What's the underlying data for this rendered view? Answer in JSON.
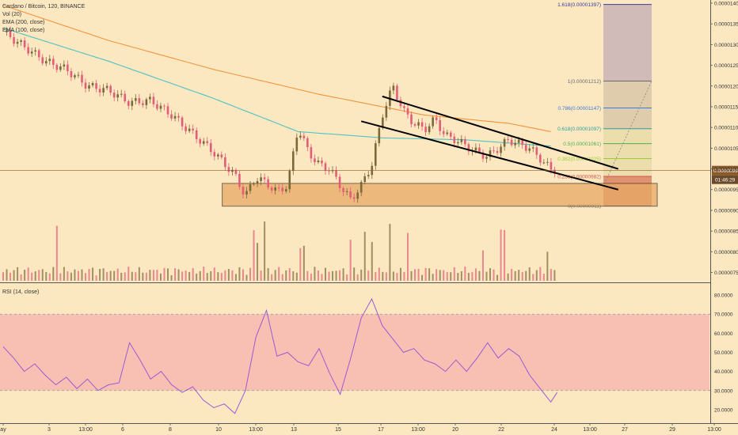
{
  "colors": {
    "background": "#fbe8c1",
    "up_candle": "#7a6a3a",
    "down_candle": "#e35d7a",
    "ema200": "#f0943c",
    "ema100": "#4ec2c6",
    "rsi_line": "#9b59d4",
    "rsi_band": "#f6b9b0",
    "support_zone": "#e7a965",
    "channel": "#000000",
    "current_price_tag": "#8b5a2b",
    "fib_top_fill": "#c9b3b6",
    "fib_mid_fill": "#d9c7a8"
  },
  "legend": {
    "title": "Cardano / Bitcoin, 120, BINANCE",
    "vol": "Vol (20)",
    "ema200": "EMA (200, close)",
    "ema100": "EMA (100, close)"
  },
  "rsi_legend": "RSI (14, close)",
  "price_tag": {
    "price": "0.00000996",
    "countdown": "01:46:29"
  },
  "fib_levels": [
    {
      "label": "1.618(0.00001397)",
      "value": 1.397e-05,
      "color": "#3a3a9c"
    },
    {
      "label": "1(0.00001212)",
      "value": 1.212e-05,
      "color": "#6b6b6b"
    },
    {
      "label": "0.786(0.00001147)",
      "value": 1.147e-05,
      "color": "#3a7bd5"
    },
    {
      "label": "0.618(0.00001097)",
      "value": 1.097e-05,
      "color": "#2aa198"
    },
    {
      "label": "0.5(0.00001061)",
      "value": 1.061e-05,
      "color": "#4caf50"
    },
    {
      "label": "0.382(0.00001025)",
      "value": 1.025e-05,
      "color": "#9acd32"
    },
    {
      "label": "0.236(0.00000982)",
      "value": 9.82e-06,
      "color": "#d9534f"
    },
    {
      "label": "0(0.00000911)",
      "value": 9.11e-06,
      "color": "#777777"
    }
  ],
  "chart_data": [
    {
      "type": "candlestick",
      "title": "Cardano / Bitcoin, 120, BINANCE",
      "ylim": [
        7.3e-06,
        1.4e-05
      ],
      "y_ticks": [
        "0.00001400",
        "0.00001350",
        "0.00001300",
        "0.00001250",
        "0.00001200",
        "0.00001150",
        "0.00001100",
        "0.00001050",
        "0.00001000",
        "0.00000950",
        "0.00000900",
        "0.00000850",
        "0.00000800",
        "0.00000750"
      ],
      "x_ticks": [
        "ay",
        "3",
        "13:00",
        "6",
        "8",
        "10",
        "13:00",
        "13",
        "15",
        "17",
        "13:00",
        "20",
        "22",
        "24",
        "13:00",
        "27",
        "29",
        "13:00"
      ],
      "ohlc_knots": [
        {
          "day": 0,
          "close": 1.33e-05
        },
        {
          "day": 1,
          "close": 1.295e-05
        },
        {
          "day": 2,
          "close": 1.26e-05
        },
        {
          "day": 3,
          "close": 1.24e-05
        },
        {
          "day": 4,
          "close": 1.2e-05
        },
        {
          "day": 5,
          "close": 1.19e-05
        },
        {
          "day": 6,
          "close": 1.16e-05
        },
        {
          "day": 7,
          "close": 1.165e-05
        },
        {
          "day": 8,
          "close": 1.13e-05
        },
        {
          "day": 9,
          "close": 1.085e-05
        },
        {
          "day": 10,
          "close": 1.04e-05
        },
        {
          "day": 11,
          "close": 9.85e-06
        },
        {
          "day": 11.5,
          "close": 9.35e-06
        },
        {
          "day": 12,
          "close": 9.8e-06
        },
        {
          "day": 12.5,
          "close": 9.65e-06
        },
        {
          "day": 13,
          "close": 9.45e-06
        },
        {
          "day": 13.5,
          "close": 9.6e-06
        },
        {
          "day": 14,
          "close": 1.1e-05
        },
        {
          "day": 14.5,
          "close": 1.04e-05
        },
        {
          "day": 15,
          "close": 1.01e-05
        },
        {
          "day": 15.5,
          "close": 1e-05
        },
        {
          "day": 16,
          "close": 9.6e-06
        },
        {
          "day": 16.5,
          "close": 9.25e-06
        },
        {
          "day": 17,
          "close": 9.6e-06
        },
        {
          "day": 17.5,
          "close": 1.01e-05
        },
        {
          "day": 18,
          "close": 1.13e-05
        },
        {
          "day": 18.5,
          "close": 1.2e-05
        },
        {
          "day": 19,
          "close": 1.14e-05
        },
        {
          "day": 19.5,
          "close": 1.11e-05
        },
        {
          "day": 20,
          "close": 1.095e-05
        },
        {
          "day": 20.5,
          "close": 1.12e-05
        },
        {
          "day": 21,
          "close": 1.08e-05
        },
        {
          "day": 21.5,
          "close": 1.07e-05
        },
        {
          "day": 22,
          "close": 1.055e-05
        },
        {
          "day": 22.5,
          "close": 1.04e-05
        },
        {
          "day": 23,
          "close": 1.03e-05
        },
        {
          "day": 23.5,
          "close": 1.05e-05
        },
        {
          "day": 24,
          "close": 1.07e-05
        },
        {
          "day": 24.5,
          "close": 1.06e-05
        },
        {
          "day": 25,
          "close": 1.05e-05
        },
        {
          "day": 25.5,
          "close": 1.025e-05
        },
        {
          "day": 26,
          "close": 9.98e-06
        }
      ],
      "ema200_knots": [
        [
          0,
          1.395e-05
        ],
        [
          5,
          1.31e-05
        ],
        [
          10,
          1.24e-05
        ],
        [
          15,
          1.18e-05
        ],
        [
          20,
          1.13e-05
        ],
        [
          24,
          1.11e-05
        ],
        [
          26,
          1.09e-05
        ]
      ],
      "ema100_knots": [
        [
          0,
          1.34e-05
        ],
        [
          5,
          1.26e-05
        ],
        [
          10,
          1.17e-05
        ],
        [
          14,
          1.09e-05
        ],
        [
          18,
          1.075e-05
        ],
        [
          22,
          1.07e-05
        ],
        [
          26,
          1.055e-05
        ]
      ],
      "channel_upper": [
        [
          18,
          1.175e-05
        ],
        [
          29.2,
          1e-05
        ]
      ],
      "channel_lower": [
        [
          17,
          1.115e-05
        ],
        [
          29.2,
          9.5e-06
        ]
      ],
      "support_zone": [
        9.1e-06,
        9.65e-06
      ]
    },
    {
      "type": "line",
      "title": "RSI (14, close)",
      "ylim": [
        15,
        85
      ],
      "y_ticks": [
        "80.0000",
        "70.0000",
        "60.0000",
        "50.0000",
        "40.0000",
        "30.0000",
        "20.0000"
      ],
      "band": [
        30,
        70
      ],
      "knots": [
        [
          0,
          53
        ],
        [
          0.5,
          47
        ],
        [
          1,
          40
        ],
        [
          1.5,
          44
        ],
        [
          2,
          38
        ],
        [
          2.5,
          33
        ],
        [
          3,
          37
        ],
        [
          3.5,
          31
        ],
        [
          4,
          36
        ],
        [
          4.5,
          30
        ],
        [
          5,
          33
        ],
        [
          5.5,
          34
        ],
        [
          6,
          55
        ],
        [
          6.5,
          46
        ],
        [
          7,
          36
        ],
        [
          7.5,
          40
        ],
        [
          8,
          33
        ],
        [
          8.5,
          29
        ],
        [
          9,
          32
        ],
        [
          9.5,
          25
        ],
        [
          10,
          21
        ],
        [
          10.5,
          23
        ],
        [
          11,
          18
        ],
        [
          11.5,
          30
        ],
        [
          12,
          58
        ],
        [
          12.5,
          72
        ],
        [
          13,
          48
        ],
        [
          13.5,
          50
        ],
        [
          14,
          45
        ],
        [
          14.5,
          43
        ],
        [
          15,
          52
        ],
        [
          15.5,
          39
        ],
        [
          16,
          28
        ],
        [
          16.5,
          47
        ],
        [
          17,
          68
        ],
        [
          17.5,
          78
        ],
        [
          18,
          64
        ],
        [
          18.5,
          57
        ],
        [
          19,
          50
        ],
        [
          19.5,
          52
        ],
        [
          20,
          46
        ],
        [
          20.5,
          44
        ],
        [
          21,
          40
        ],
        [
          21.5,
          46
        ],
        [
          22,
          40
        ],
        [
          22.5,
          47
        ],
        [
          23,
          55
        ],
        [
          23.5,
          47
        ],
        [
          24,
          52
        ],
        [
          24.5,
          48
        ],
        [
          25,
          38
        ],
        [
          25.5,
          31
        ],
        [
          26,
          24
        ],
        [
          26.3,
          29
        ]
      ]
    },
    {
      "type": "bar",
      "title": "Vol (20)",
      "note": "relative volume, arbitrary units",
      "peaks": [
        [
          2.5,
          0.95
        ],
        [
          12,
          0.72
        ],
        [
          12.4,
          0.84
        ],
        [
          14.2,
          0.5
        ],
        [
          16.5,
          0.62
        ],
        [
          17.2,
          0.69
        ],
        [
          17.5,
          0.9
        ],
        [
          18.4,
          0.8
        ],
        [
          19.2,
          0.99
        ],
        [
          22.8,
          0.66
        ],
        [
          23.7,
          0.75
        ],
        [
          25.8,
          0.6
        ]
      ]
    }
  ]
}
